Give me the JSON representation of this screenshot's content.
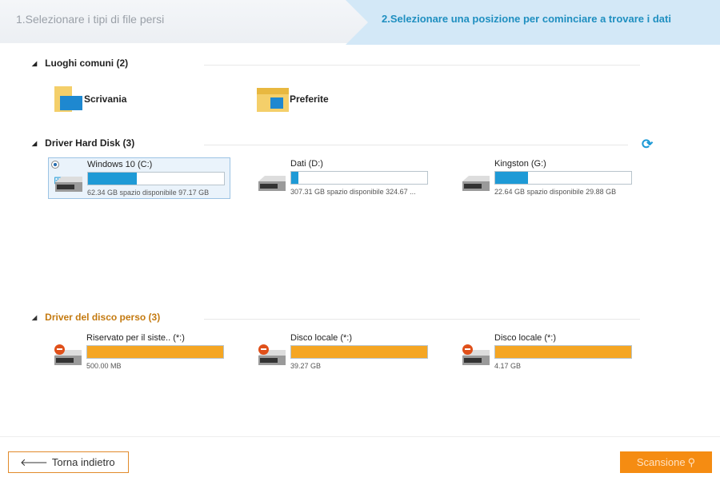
{
  "steps": {
    "step1": "1.Selezionare i tipi di file persi",
    "step2": "2.Selezionare una posizione per cominciare a trovare i dati"
  },
  "sections": {
    "common": {
      "title": "Luoghi comuni (2)",
      "items": [
        {
          "label": "Scrivania",
          "icon": "desktop-folder-icon"
        },
        {
          "label": "Preferite",
          "icon": "favorites-folder-icon"
        }
      ]
    },
    "hdd": {
      "title": "Driver Hard Disk (3)",
      "refresh_icon": "refresh-icon",
      "drives": [
        {
          "name": "Windows 10 (C:)",
          "info": "62.34 GB spazio disponibile 97.17 GB",
          "used_fraction": 0.36,
          "selected": true
        },
        {
          "name": "Dati (D:)",
          "info": "307.31 GB spazio disponibile 324.67 ...",
          "used_fraction": 0.05
        },
        {
          "name": "Kingston (G:)",
          "info": "22.64 GB spazio disponibile 29.88 GB",
          "used_fraction": 0.24
        }
      ]
    },
    "lost": {
      "title": "Driver del disco perso (3)",
      "drives": [
        {
          "name": "Riservato per il siste.. (*:)",
          "info": "500.00 MB",
          "used_fraction": 1
        },
        {
          "name": "Disco locale (*:)",
          "info": "39.27 GB",
          "used_fraction": 1
        },
        {
          "name": "Disco locale (*:)",
          "info": "4.17 GB",
          "used_fraction": 1
        }
      ]
    }
  },
  "footer": {
    "back": "Torna indietro",
    "scan": "Scansione"
  },
  "colors": {
    "accent": "#1f8fc0",
    "bar_blue": "#1e9ad6",
    "lost_orange": "#f5a623",
    "lost_title": "#c47a10",
    "scan": "#f58c12"
  }
}
